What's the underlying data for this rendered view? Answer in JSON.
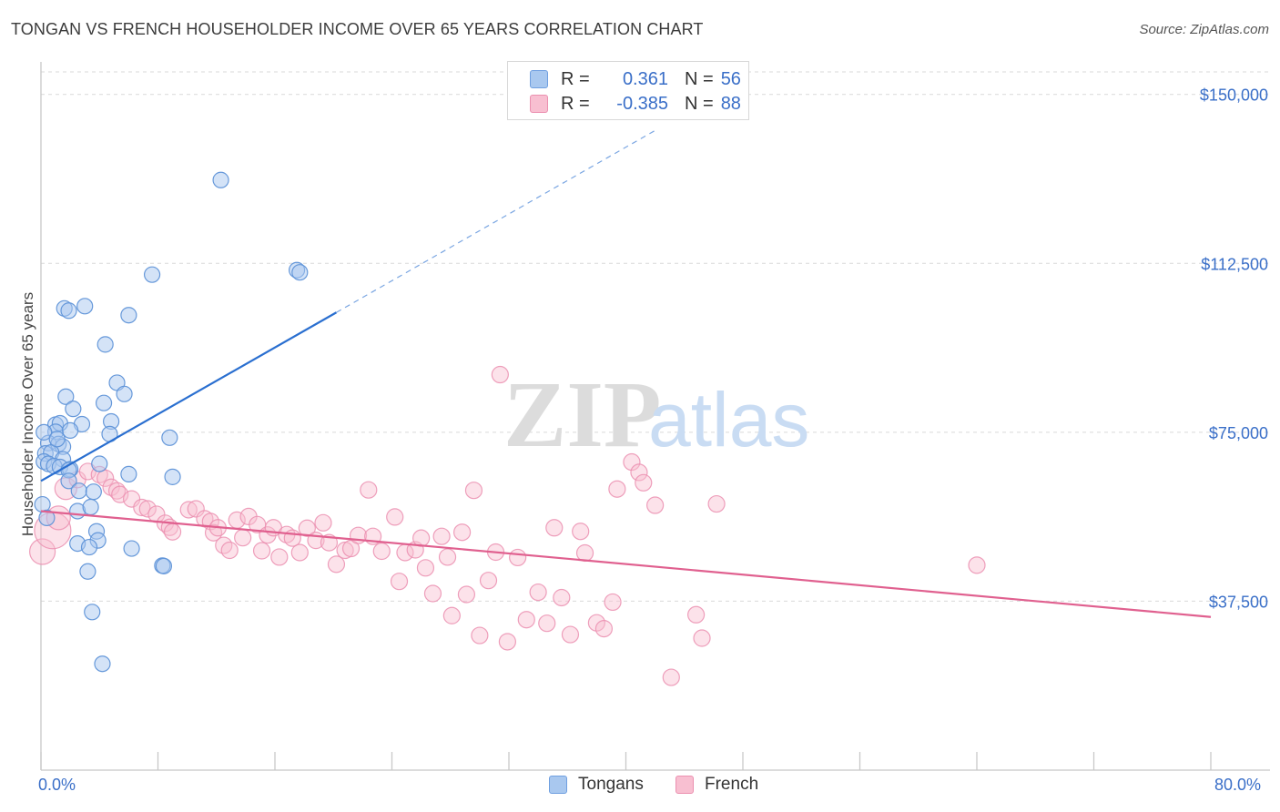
{
  "title": "TONGAN VS FRENCH HOUSEHOLDER INCOME OVER 65 YEARS CORRELATION CHART",
  "source": "Source: ZipAtlas.com",
  "watermark": {
    "zip": "ZIP",
    "atlas": "atlas"
  },
  "legend": {
    "rows": [
      {
        "r_label": "R =",
        "r_value": "0.361",
        "n_label": "N =",
        "n_value": "56",
        "color": "#a9c8ef",
        "border": "#6f9fe0"
      },
      {
        "r_label": "R =",
        "r_value": "-0.385",
        "n_label": "N =",
        "n_value": "88",
        "color": "#f8bfd1",
        "border": "#eb90b0"
      }
    ]
  },
  "bottom_legend": {
    "tongans": "Tongans",
    "french": "French"
  },
  "x_axis_labels": {
    "left": "0.0%",
    "right": "80.0%"
  },
  "colors": {
    "tongan_fill": "#a9c8ef",
    "tongan_stroke": "#5f93d8",
    "tongan_line": "#2a6fd0",
    "french_fill": "#f8bfd1",
    "french_stroke": "#eb8fb0",
    "french_line": "#e0608f",
    "axis_text": "#3a6fc8",
    "grid": "#d9d9d9"
  },
  "chart_data": {
    "type": "scatter",
    "title": "TONGAN VS FRENCH HOUSEHOLDER INCOME OVER 65 YEARS CORRELATION CHART",
    "xlabel": "",
    "ylabel": "Householder Income Over 65 years",
    "xlim": [
      0,
      80
    ],
    "ylim": [
      0,
      155000
    ],
    "y_ticks": [
      37500,
      75000,
      112500,
      150000
    ],
    "y_tick_labels": [
      "$37,500",
      "$75,000",
      "$112,500",
      "$150,000"
    ],
    "x_tick_labels": [
      "0.0%",
      "80.0%"
    ],
    "grid": true,
    "legend_position": "top-center",
    "series": [
      {
        "name": "Tongans",
        "r": 0.361,
        "n": 56,
        "trend": {
          "x0": 0,
          "y0": 64200,
          "x1": 20.2,
          "y1": 101600,
          "dashed_to_x": 42,
          "dashed_to_y": 142000
        },
        "points": [
          [
            12.3,
            131000
          ],
          [
            7.6,
            110000
          ],
          [
            17.5,
            111000
          ],
          [
            17.7,
            110500
          ],
          [
            3.0,
            103000
          ],
          [
            1.6,
            102500
          ],
          [
            1.9,
            102000
          ],
          [
            6.0,
            101000
          ],
          [
            4.4,
            94500
          ],
          [
            5.2,
            86000
          ],
          [
            1.7,
            82900
          ],
          [
            5.7,
            83500
          ],
          [
            4.3,
            81500
          ],
          [
            2.2,
            80200
          ],
          [
            4.8,
            77400
          ],
          [
            1.0,
            76700
          ],
          [
            1.3,
            77000
          ],
          [
            2.8,
            76800
          ],
          [
            1.0,
            75100
          ],
          [
            2.0,
            75400
          ],
          [
            4.7,
            74600
          ],
          [
            8.8,
            73800
          ],
          [
            0.5,
            72600
          ],
          [
            1.2,
            72400
          ],
          [
            1.5,
            71800
          ],
          [
            0.3,
            70300
          ],
          [
            0.7,
            70500
          ],
          [
            1.5,
            69000
          ],
          [
            0.2,
            68500
          ],
          [
            0.5,
            68000
          ],
          [
            0.9,
            67500
          ],
          [
            1.3,
            67300
          ],
          [
            2.0,
            66800
          ],
          [
            4.0,
            68000
          ],
          [
            1.9,
            66600
          ],
          [
            6.0,
            65700
          ],
          [
            1.9,
            64200
          ],
          [
            9.0,
            65100
          ],
          [
            2.6,
            62000
          ],
          [
            3.6,
            61800
          ],
          [
            0.1,
            59000
          ],
          [
            2.5,
            57500
          ],
          [
            3.4,
            58400
          ],
          [
            0.4,
            56000
          ],
          [
            3.8,
            53000
          ],
          [
            3.9,
            51000
          ],
          [
            2.5,
            50300
          ],
          [
            3.3,
            49500
          ],
          [
            6.2,
            49200
          ],
          [
            3.2,
            44100
          ],
          [
            8.3,
            45400
          ],
          [
            8.4,
            45300
          ],
          [
            3.5,
            35100
          ],
          [
            4.2,
            23600
          ],
          [
            0.2,
            75000
          ],
          [
            1.1,
            73500
          ]
        ]
      },
      {
        "name": "French",
        "r": -0.385,
        "n": 88,
        "trend": {
          "x0": 0,
          "y0": 57500,
          "x1": 80,
          "y1": 34000
        },
        "points": [
          [
            0.1,
            48500
          ],
          [
            0.8,
            53200
          ],
          [
            1.2,
            56000
          ],
          [
            1.7,
            62500
          ],
          [
            2.5,
            64500
          ],
          [
            3.2,
            66300
          ],
          [
            4.0,
            65600
          ],
          [
            4.4,
            64800
          ],
          [
            4.8,
            62800
          ],
          [
            5.2,
            62000
          ],
          [
            5.4,
            61200
          ],
          [
            6.2,
            60200
          ],
          [
            6.9,
            58300
          ],
          [
            7.3,
            58000
          ],
          [
            7.9,
            56800
          ],
          [
            8.5,
            54800
          ],
          [
            8.8,
            53900
          ],
          [
            9.0,
            52900
          ],
          [
            10.1,
            57800
          ],
          [
            10.6,
            58000
          ],
          [
            11.2,
            55800
          ],
          [
            11.6,
            55200
          ],
          [
            11.8,
            52700
          ],
          [
            12.1,
            53800
          ],
          [
            12.5,
            49900
          ],
          [
            12.9,
            48800
          ],
          [
            13.4,
            55500
          ],
          [
            13.8,
            51600
          ],
          [
            14.2,
            56300
          ],
          [
            14.8,
            54500
          ],
          [
            15.1,
            48700
          ],
          [
            15.5,
            52200
          ],
          [
            15.9,
            53800
          ],
          [
            16.3,
            47300
          ],
          [
            16.8,
            52300
          ],
          [
            17.2,
            51500
          ],
          [
            17.7,
            48300
          ],
          [
            18.2,
            53700
          ],
          [
            18.8,
            51000
          ],
          [
            19.3,
            54900
          ],
          [
            19.7,
            50500
          ],
          [
            20.2,
            45700
          ],
          [
            20.8,
            48800
          ],
          [
            21.2,
            49200
          ],
          [
            21.7,
            52100
          ],
          [
            22.4,
            62200
          ],
          [
            22.7,
            51900
          ],
          [
            23.3,
            48600
          ],
          [
            24.2,
            56200
          ],
          [
            24.5,
            41900
          ],
          [
            24.9,
            48300
          ],
          [
            25.6,
            48900
          ],
          [
            26.0,
            51500
          ],
          [
            26.3,
            44900
          ],
          [
            26.8,
            39200
          ],
          [
            27.4,
            51900
          ],
          [
            27.8,
            47300
          ],
          [
            28.1,
            34300
          ],
          [
            28.8,
            52800
          ],
          [
            29.1,
            39000
          ],
          [
            29.6,
            62100
          ],
          [
            30.0,
            29900
          ],
          [
            30.6,
            42100
          ],
          [
            31.1,
            48400
          ],
          [
            31.4,
            87800
          ],
          [
            31.9,
            28500
          ],
          [
            32.6,
            47200
          ],
          [
            33.2,
            33400
          ],
          [
            34.0,
            39500
          ],
          [
            34.6,
            32600
          ],
          [
            35.1,
            53800
          ],
          [
            35.6,
            38300
          ],
          [
            36.2,
            30100
          ],
          [
            36.9,
            53000
          ],
          [
            37.2,
            48200
          ],
          [
            38.0,
            32700
          ],
          [
            38.5,
            31400
          ],
          [
            39.1,
            37300
          ],
          [
            39.4,
            62400
          ],
          [
            40.4,
            68400
          ],
          [
            40.9,
            66100
          ],
          [
            41.2,
            63800
          ],
          [
            42.0,
            58800
          ],
          [
            43.1,
            20600
          ],
          [
            44.8,
            34500
          ],
          [
            45.2,
            29300
          ],
          [
            46.2,
            59100
          ],
          [
            64.0,
            45500
          ]
        ]
      }
    ]
  }
}
